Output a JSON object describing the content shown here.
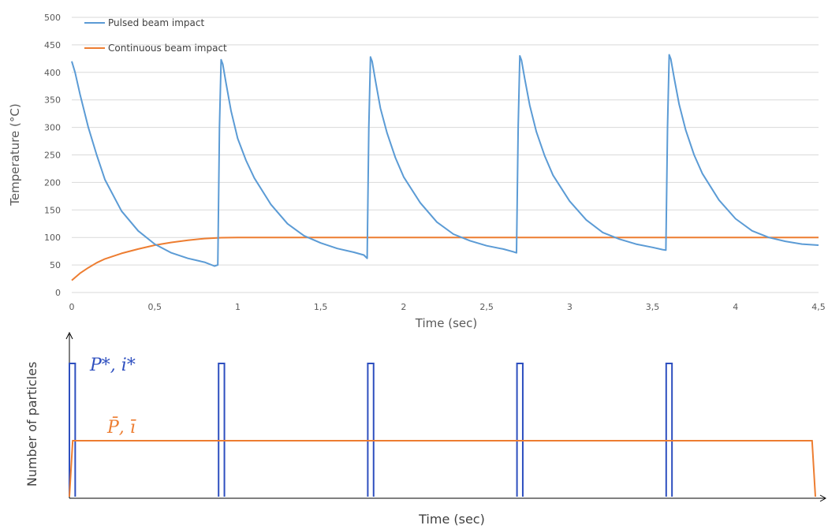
{
  "chart_data": [
    {
      "type": "line",
      "title": "",
      "xlabel": "Time (sec)",
      "ylabel": "Temperature (°C)",
      "xlim": [
        0,
        4.5
      ],
      "ylim": [
        0,
        500
      ],
      "x_ticks": [
        "0",
        "0,5",
        "1",
        "1,5",
        "2",
        "2,5",
        "3",
        "3,5",
        "4",
        "4,5"
      ],
      "y_ticks": [
        "0",
        "50",
        "100",
        "150",
        "200",
        "250",
        "300",
        "350",
        "400",
        "450",
        "500"
      ],
      "grid": "horizontal",
      "legend_position": "top-left",
      "series": [
        {
          "name": "Pulsed beam impact",
          "color": "#5b9bd5",
          "x": [
            0,
            0.02,
            0.05,
            0.1,
            0.15,
            0.2,
            0.3,
            0.4,
            0.5,
            0.6,
            0.7,
            0.8,
            0.86,
            0.88,
            0.89,
            0.9,
            0.91,
            0.93,
            0.96,
            1.0,
            1.05,
            1.1,
            1.2,
            1.3,
            1.4,
            1.5,
            1.6,
            1.7,
            1.76,
            1.78,
            1.79,
            1.8,
            1.81,
            1.83,
            1.86,
            1.9,
            1.95,
            2.0,
            2.1,
            2.2,
            2.3,
            2.4,
            2.5,
            2.6,
            2.66,
            2.68,
            2.69,
            2.7,
            2.71,
            2.73,
            2.76,
            2.8,
            2.85,
            2.9,
            3.0,
            3.1,
            3.2,
            3.3,
            3.4,
            3.5,
            3.56,
            3.58,
            3.59,
            3.6,
            3.61,
            3.63,
            3.66,
            3.7,
            3.75,
            3.8,
            3.9,
            4.0,
            4.1,
            4.2,
            4.3,
            4.4,
            4.5
          ],
          "y": [
            420,
            400,
            360,
            300,
            250,
            205,
            148,
            112,
            88,
            72,
            62,
            55,
            48,
            50,
            300,
            423,
            415,
            380,
            330,
            280,
            240,
            208,
            160,
            125,
            103,
            90,
            80,
            73,
            68,
            62,
            300,
            428,
            420,
            385,
            335,
            290,
            245,
            210,
            163,
            128,
            106,
            94,
            85,
            79,
            74,
            72,
            300,
            430,
            422,
            388,
            340,
            292,
            248,
            213,
            166,
            132,
            109,
            97,
            88,
            82,
            78,
            77,
            300,
            432,
            424,
            390,
            342,
            295,
            250,
            216,
            168,
            134,
            112,
            100,
            93,
            88,
            86
          ]
        },
        {
          "name": "Continuous beam impact",
          "color": "#ed7d31",
          "x": [
            0,
            0.05,
            0.1,
            0.15,
            0.2,
            0.3,
            0.4,
            0.5,
            0.6,
            0.7,
            0.8,
            0.9,
            1.0,
            1.1,
            1.5,
            2.0,
            2.5,
            3.0,
            3.5,
            4.0,
            4.5
          ],
          "y": [
            22,
            35,
            45,
            54,
            61,
            71,
            79,
            86,
            91,
            95,
            98,
            99.5,
            100,
            100,
            100,
            100,
            100,
            100,
            100,
            100,
            100
          ]
        }
      ]
    },
    {
      "type": "line",
      "title": "",
      "xlabel": "Time (sec)",
      "ylabel": "Number of particles",
      "xlim": [
        0,
        4.5
      ],
      "ylim": [
        0,
        1
      ],
      "grid": "none",
      "series": [
        {
          "label": "P*, i*",
          "color": "#2e4fbf",
          "pulse_starts": [
            0,
            0.9,
            1.8,
            2.7,
            3.6
          ],
          "pulse_width": 0.035,
          "level": 1.0
        },
        {
          "label": "P̄, ī",
          "color": "#ed7d31",
          "x": [
            0,
            0.02,
            4.48,
            4.5
          ],
          "y": [
            0,
            0.42,
            0.42,
            0
          ]
        }
      ],
      "annotations": [
        "P*, i*",
        "P̄, ī"
      ]
    }
  ]
}
